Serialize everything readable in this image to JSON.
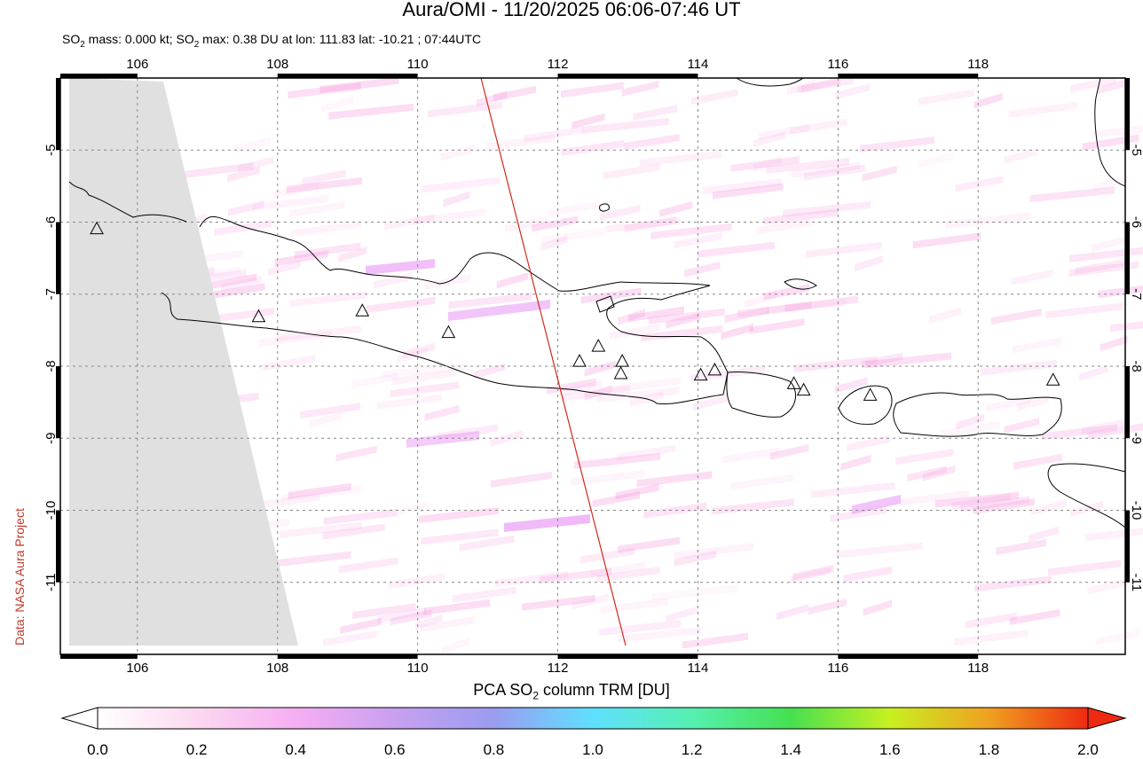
{
  "title": "Aura/OMI - 11/20/2025 06:06-07:46 UT",
  "subtitle": {
    "prefix": "SO",
    "sub1": "2",
    "mid": " mass: 0.000 kt; SO",
    "sub2": "2",
    "suffix": " max: 0.38 DU at lon: 111.83 lat: -10.21 ; 07:44UTC"
  },
  "credit": "Data: NASA Aura Project",
  "map": {
    "lon_range": [
      104.9,
      120.1
    ],
    "lat_range": [
      -12.0,
      -4.0
    ],
    "lon_ticks": [
      "106",
      "108",
      "110",
      "112",
      "114",
      "116",
      "118"
    ],
    "lat_ticks": [
      "-5",
      "-6",
      "-7",
      "-8",
      "-9",
      "-10",
      "-11"
    ],
    "colors": {
      "coast": "#000000",
      "orbit_track": "#d42a1a",
      "no_data": "#e0e0e0",
      "grid": "#888888"
    },
    "volcanoes": [
      {
        "lon": 105.42,
        "lat": -6.1
      },
      {
        "lon": 107.73,
        "lat": -7.32
      },
      {
        "lon": 109.21,
        "lat": -7.24
      },
      {
        "lon": 110.44,
        "lat": -7.54
      },
      {
        "lon": 112.31,
        "lat": -7.94
      },
      {
        "lon": 112.58,
        "lat": -7.73
      },
      {
        "lon": 112.92,
        "lat": -7.94
      },
      {
        "lon": 112.9,
        "lat": -8.11
      },
      {
        "lon": 114.04,
        "lat": -8.13
      },
      {
        "lon": 114.24,
        "lat": -8.06
      },
      {
        "lon": 115.37,
        "lat": -8.25
      },
      {
        "lon": 115.51,
        "lat": -8.34
      },
      {
        "lon": 116.46,
        "lat": -8.41
      },
      {
        "lon": 119.07,
        "lat": -8.2
      }
    ]
  },
  "colorbar": {
    "title_prefix": "PCA SO",
    "title_sub": "2",
    "title_suffix": " column TRM [DU]",
    "ticks": [
      "0.0",
      "0.2",
      "0.4",
      "0.6",
      "0.8",
      "1.0",
      "1.2",
      "1.4",
      "1.6",
      "1.8",
      "2.0"
    ],
    "range": [
      0.0,
      2.0
    ]
  }
}
